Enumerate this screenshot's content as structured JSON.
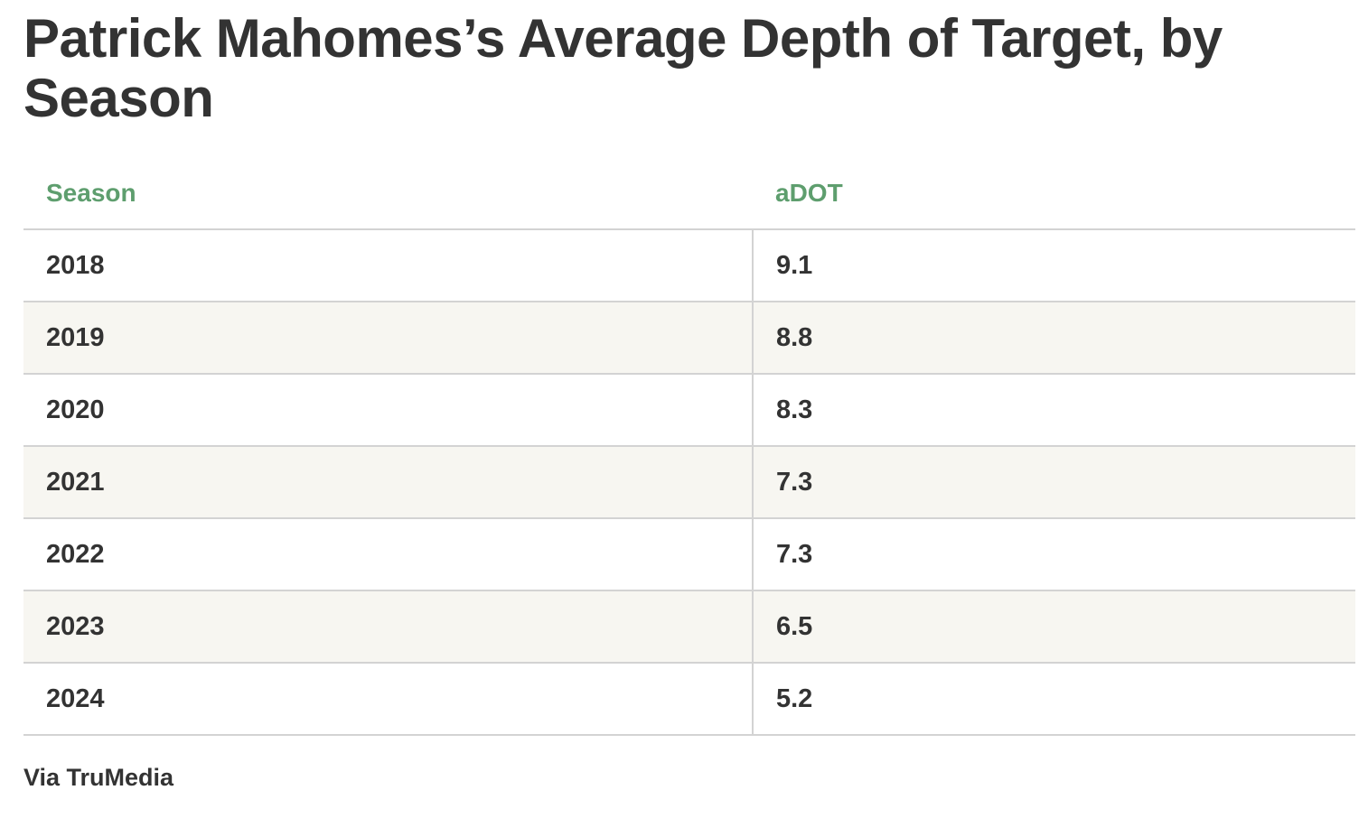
{
  "title": "Patrick Mahomes’s Average Depth of Target, by Season",
  "source": "Via TruMedia",
  "colors": {
    "header_text": "#5e9e6e",
    "body_text": "#333333",
    "row_stripe": "#f7f6f1",
    "rule": "#d3d3d3"
  },
  "chart_data": {
    "type": "table",
    "title": "Patrick Mahomes’s Average Depth of Target, by Season",
    "columns": [
      "Season",
      "aDOT"
    ],
    "rows": [
      [
        "2018",
        "9.1"
      ],
      [
        "2019",
        "8.8"
      ],
      [
        "2020",
        "8.3"
      ],
      [
        "2021",
        "7.3"
      ],
      [
        "2022",
        "7.3"
      ],
      [
        "2023",
        "6.5"
      ],
      [
        "2024",
        "5.2"
      ]
    ],
    "x": [
      "2018",
      "2019",
      "2020",
      "2021",
      "2022",
      "2023",
      "2024"
    ],
    "values": [
      9.1,
      8.8,
      8.3,
      7.3,
      7.3,
      6.5,
      5.2
    ]
  }
}
